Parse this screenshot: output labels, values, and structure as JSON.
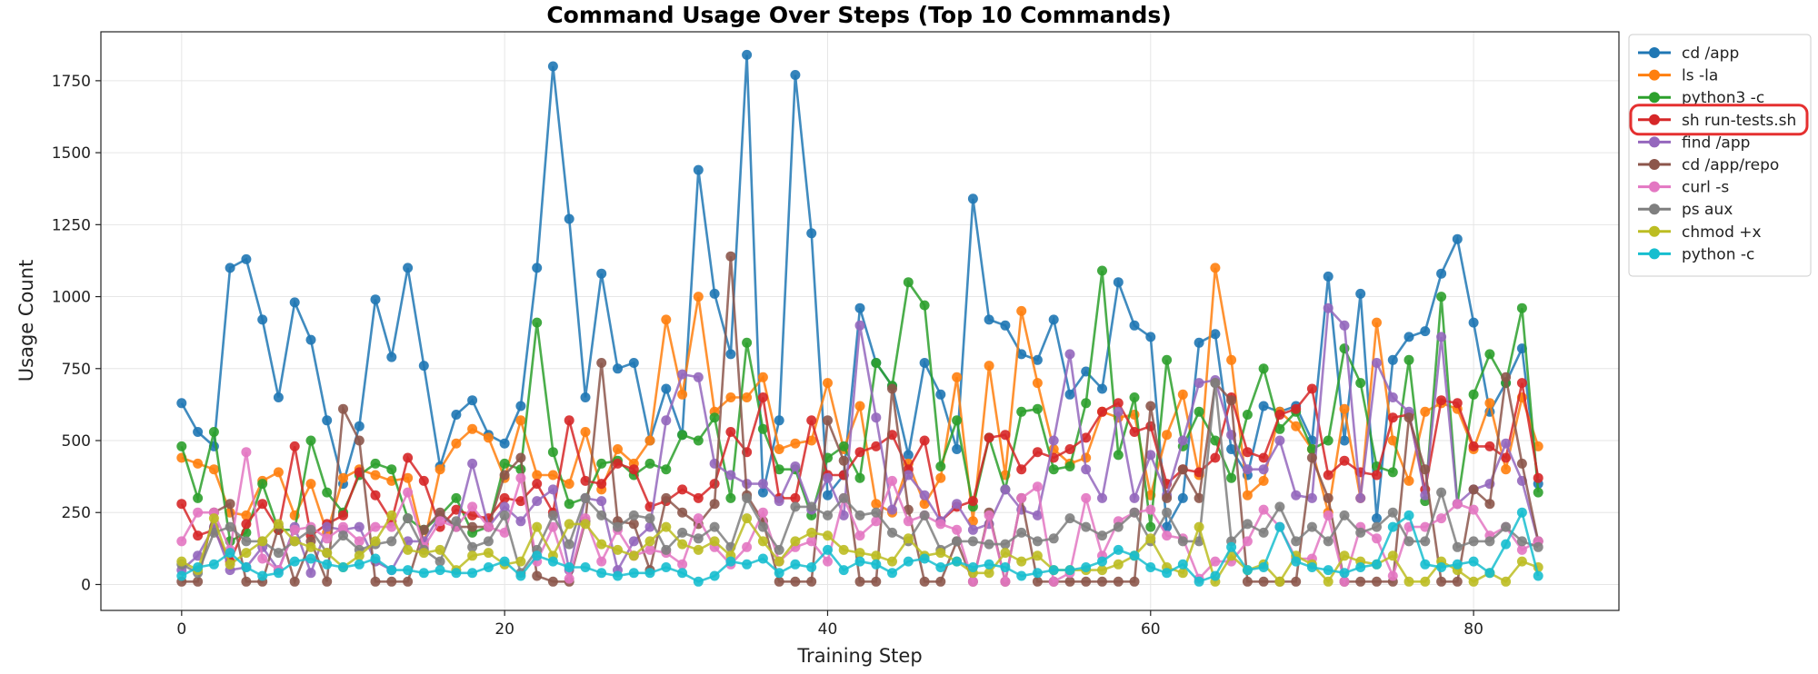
{
  "chart_data": {
    "type": "line",
    "title": "Command Usage Over Steps (Top 10 Commands)",
    "xlabel": "Training Step",
    "ylabel": "Usage Count",
    "xlim": [
      -5,
      89
    ],
    "ylim": [
      -90,
      1920
    ],
    "xticks": [
      0,
      20,
      40,
      60,
      80
    ],
    "yticks": [
      0,
      250,
      500,
      750,
      1000,
      1250,
      1500,
      1750
    ],
    "grid": true,
    "legend_position": "outside-right",
    "highlighted_legend_entry": "sh run-tests.sh",
    "series": [
      {
        "name": "cd /app",
        "color": "#1f77b4",
        "values": [
          630,
          530,
          480,
          1100,
          1130,
          920,
          650,
          980,
          850,
          570,
          350,
          550,
          990,
          790,
          1100,
          760,
          410,
          590,
          640,
          520,
          490,
          620,
          1100,
          1800,
          1270,
          650,
          1080,
          750,
          770,
          500,
          680,
          520,
          1440,
          1010,
          800,
          1840,
          320,
          570,
          1770,
          1220,
          310,
          380,
          960,
          770,
          690,
          450,
          770,
          660,
          470,
          1340,
          920,
          900,
          800,
          780,
          920,
          660,
          740,
          680,
          1050,
          900,
          860,
          200,
          300,
          840,
          870,
          470,
          380,
          620,
          600,
          620,
          500,
          1070,
          500,
          1010,
          230,
          780,
          860,
          880,
          1080,
          1200,
          910,
          600,
          700,
          820,
          350
        ]
      },
      {
        "name": "ls -la",
        "color": "#ff7f0e",
        "values": [
          440,
          420,
          400,
          250,
          240,
          360,
          390,
          240,
          350,
          180,
          370,
          400,
          380,
          360,
          370,
          140,
          400,
          490,
          540,
          510,
          370,
          570,
          380,
          380,
          350,
          530,
          330,
          470,
          420,
          500,
          920,
          660,
          1000,
          600,
          650,
          650,
          720,
          470,
          490,
          500,
          700,
          470,
          620,
          280,
          250,
          420,
          280,
          370,
          720,
          220,
          760,
          380,
          950,
          700,
          470,
          420,
          440,
          600,
          580,
          590,
          310,
          520,
          660,
          380,
          1100,
          780,
          310,
          360,
          600,
          550,
          470,
          250,
          610,
          300,
          910,
          500,
          360,
          600,
          630,
          610,
          470,
          630,
          400,
          650,
          480
        ]
      },
      {
        "name": "python3 -c",
        "color": "#2ca02c",
        "values": [
          480,
          300,
          530,
          150,
          180,
          350,
          190,
          190,
          500,
          320,
          250,
          380,
          420,
          400,
          230,
          190,
          240,
          300,
          180,
          200,
          420,
          400,
          910,
          460,
          280,
          300,
          420,
          430,
          380,
          420,
          400,
          520,
          500,
          580,
          300,
          840,
          540,
          400,
          400,
          240,
          440,
          480,
          370,
          770,
          690,
          1050,
          970,
          410,
          570,
          270,
          510,
          330,
          600,
          610,
          400,
          410,
          630,
          1090,
          450,
          650,
          200,
          780,
          480,
          600,
          500,
          370,
          590,
          750,
          540,
          600,
          470,
          500,
          820,
          700,
          410,
          390,
          780,
          290,
          1000,
          280,
          660,
          800,
          700,
          960,
          320
        ]
      },
      {
        "name": "sh run-tests.sh",
        "color": "#d62728",
        "values": [
          280,
          170,
          190,
          80,
          210,
          280,
          190,
          480,
          170,
          210,
          240,
          390,
          310,
          220,
          440,
          360,
          200,
          260,
          240,
          230,
          300,
          290,
          350,
          250,
          570,
          360,
          350,
          420,
          400,
          270,
          290,
          330,
          300,
          350,
          530,
          460,
          650,
          300,
          300,
          570,
          380,
          380,
          460,
          480,
          520,
          400,
          500,
          220,
          270,
          290,
          510,
          520,
          400,
          460,
          440,
          470,
          510,
          600,
          630,
          530,
          550,
          350,
          400,
          390,
          440,
          650,
          460,
          440,
          590,
          610,
          680,
          380,
          430,
          390,
          380,
          580,
          590,
          330,
          640,
          630,
          480,
          480,
          440,
          700,
          370
        ]
      },
      {
        "name": "find /app",
        "color": "#9467bd",
        "values": [
          50,
          100,
          200,
          50,
          60,
          130,
          50,
          200,
          40,
          200,
          190,
          200,
          80,
          50,
          150,
          150,
          240,
          200,
          420,
          200,
          270,
          220,
          290,
          330,
          50,
          300,
          290,
          50,
          150,
          200,
          570,
          730,
          720,
          420,
          380,
          350,
          350,
          290,
          410,
          260,
          370,
          240,
          900,
          580,
          260,
          380,
          310,
          220,
          280,
          190,
          210,
          330,
          260,
          240,
          500,
          800,
          400,
          300,
          600,
          300,
          450,
          310,
          500,
          700,
          710,
          520,
          400,
          400,
          500,
          310,
          300,
          960,
          900,
          300,
          770,
          650,
          600,
          310,
          860,
          280,
          330,
          350,
          490,
          360,
          150
        ]
      },
      {
        "name": "cd /app/repo",
        "color": "#8c564b",
        "values": [
          10,
          10,
          250,
          280,
          10,
          10,
          200,
          10,
          150,
          10,
          610,
          500,
          10,
          10,
          10,
          190,
          250,
          200,
          200,
          200,
          380,
          440,
          30,
          10,
          10,
          220,
          770,
          220,
          210,
          50,
          300,
          250,
          210,
          280,
          1140,
          310,
          220,
          10,
          10,
          10,
          570,
          430,
          10,
          10,
          680,
          260,
          10,
          10,
          150,
          10,
          250,
          10,
          300,
          10,
          10,
          10,
          10,
          10,
          10,
          10,
          620,
          300,
          400,
          300,
          700,
          640,
          10,
          10,
          10,
          10,
          440,
          300,
          10,
          10,
          10,
          10,
          580,
          400,
          10,
          10,
          330,
          280,
          720,
          420,
          150
        ]
      },
      {
        "name": "curl -s",
        "color": "#e377c2",
        "values": [
          150,
          250,
          250,
          120,
          460,
          90,
          50,
          190,
          200,
          160,
          200,
          150,
          200,
          200,
          320,
          130,
          220,
          200,
          270,
          200,
          180,
          370,
          80,
          200,
          20,
          230,
          80,
          190,
          100,
          120,
          110,
          70,
          230,
          130,
          70,
          130,
          250,
          80,
          130,
          150,
          80,
          300,
          170,
          220,
          360,
          220,
          240,
          210,
          190,
          10,
          240,
          10,
          300,
          340,
          10,
          40,
          300,
          100,
          220,
          250,
          260,
          170,
          160,
          20,
          80,
          80,
          150,
          260,
          200,
          90,
          90,
          240,
          10,
          200,
          160,
          30,
          200,
          200,
          230,
          280,
          260,
          170,
          200,
          120,
          150
        ]
      },
      {
        "name": "ps aux",
        "color": "#7f7f7f",
        "values": [
          70,
          40,
          180,
          200,
          150,
          150,
          110,
          150,
          190,
          110,
          170,
          120,
          140,
          150,
          230,
          120,
          80,
          220,
          130,
          150,
          240,
          40,
          120,
          240,
          140,
          300,
          240,
          200,
          240,
          230,
          120,
          180,
          160,
          200,
          130,
          300,
          200,
          120,
          270,
          270,
          240,
          300,
          240,
          250,
          180,
          150,
          240,
          120,
          150,
          150,
          140,
          140,
          180,
          150,
          160,
          230,
          200,
          170,
          200,
          250,
          150,
          250,
          150,
          150,
          700,
          150,
          210,
          180,
          270,
          150,
          200,
          150,
          240,
          180,
          200,
          250,
          150,
          150,
          320,
          130,
          150,
          150,
          200,
          150,
          130
        ]
      },
      {
        "name": "chmod +x",
        "color": "#bcbd22",
        "values": [
          80,
          50,
          230,
          70,
          110,
          150,
          210,
          150,
          130,
          110,
          60,
          100,
          150,
          240,
          120,
          110,
          120,
          50,
          100,
          110,
          70,
          80,
          200,
          100,
          210,
          210,
          140,
          120,
          100,
          150,
          200,
          140,
          120,
          150,
          100,
          230,
          150,
          80,
          150,
          180,
          170,
          120,
          110,
          100,
          80,
          160,
          100,
          110,
          80,
          40,
          40,
          110,
          80,
          100,
          50,
          50,
          50,
          50,
          70,
          100,
          160,
          60,
          40,
          200,
          10,
          100,
          50,
          70,
          10,
          100,
          70,
          10,
          100,
          80,
          70,
          100,
          10,
          10,
          80,
          50,
          10,
          40,
          10,
          80,
          60
        ]
      },
      {
        "name": "python -c",
        "color": "#17becf",
        "values": [
          30,
          60,
          70,
          110,
          60,
          30,
          40,
          80,
          90,
          70,
          60,
          70,
          90,
          50,
          50,
          40,
          50,
          40,
          40,
          60,
          80,
          30,
          100,
          80,
          60,
          60,
          40,
          30,
          40,
          40,
          60,
          40,
          10,
          30,
          80,
          70,
          90,
          40,
          70,
          60,
          120,
          50,
          80,
          70,
          40,
          80,
          90,
          60,
          80,
          60,
          70,
          60,
          30,
          40,
          50,
          50,
          60,
          80,
          120,
          100,
          60,
          40,
          70,
          10,
          30,
          130,
          50,
          60,
          200,
          80,
          60,
          50,
          40,
          60,
          70,
          200,
          240,
          70,
          60,
          70,
          80,
          40,
          140,
          250,
          30
        ]
      }
    ]
  }
}
